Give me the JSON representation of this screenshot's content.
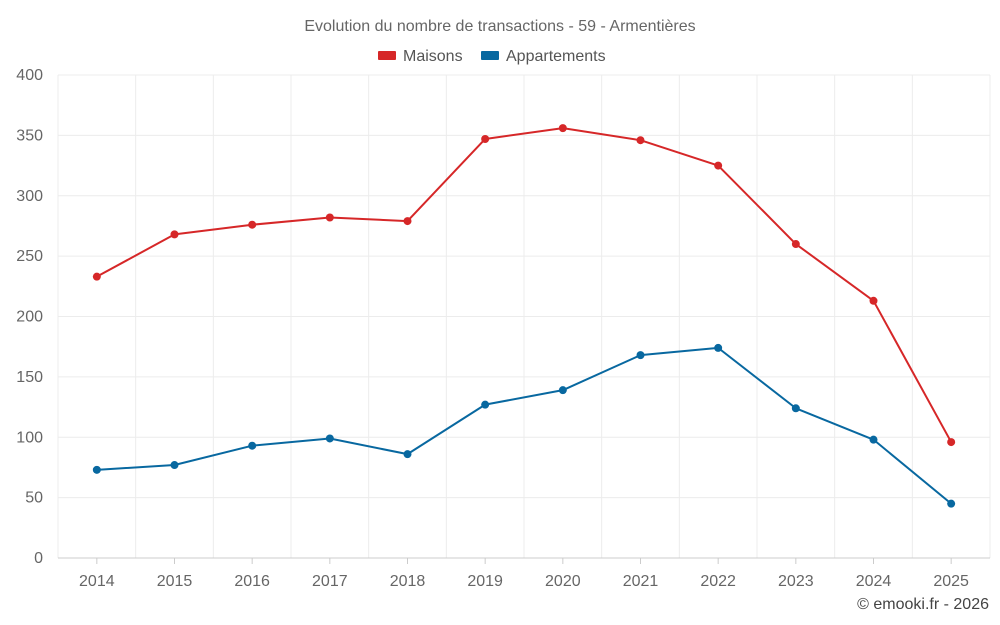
{
  "chart_data": {
    "type": "line",
    "title": "Evolution du nombre de transactions - 59 - Armentières",
    "x": [
      "2014",
      "2015",
      "2016",
      "2017",
      "2018",
      "2019",
      "2020",
      "2021",
      "2022",
      "2023",
      "2024",
      "2025"
    ],
    "yticks": [
      "0",
      "50",
      "100",
      "150",
      "200",
      "250",
      "300",
      "350",
      "400"
    ],
    "ylim": [
      0,
      400
    ],
    "grid": true,
    "legend_position": "top-center",
    "series": [
      {
        "name": "Maisons",
        "color": "#d62728",
        "values": [
          233,
          268,
          276,
          282,
          279,
          347,
          356,
          346,
          325,
          260,
          213,
          96
        ]
      },
      {
        "name": "Appartements",
        "color": "#0868a0",
        "values": [
          73,
          77,
          93,
          99,
          86,
          127,
          139,
          168,
          174,
          124,
          98,
          45
        ]
      }
    ]
  },
  "credit": "© emooki.fr - 2026"
}
